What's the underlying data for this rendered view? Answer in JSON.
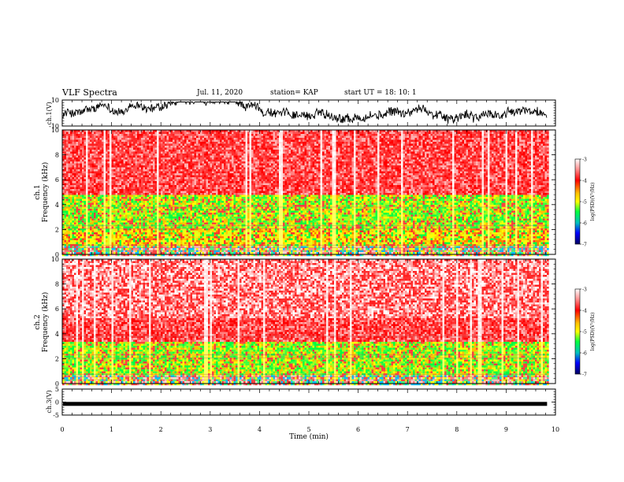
{
  "header": {
    "title": "VLF Spectra",
    "date": "Jul. 11, 2020",
    "station": "station= KAP",
    "start": "start UT =  18: 10: 1"
  },
  "colors": {
    "high": "#ff2020",
    "mid": "#ffff00",
    "low": "#00ff40",
    "bar_top": "#ffd0d0",
    "bar_bottom": "#000080"
  },
  "chart_data": [
    {
      "type": "line",
      "panel": "ch1-waveform",
      "ylabel": "ch.1(V)",
      "ylim": [
        -10,
        10
      ],
      "yticks": [
        "10",
        "-10"
      ],
      "xlim": [
        0,
        10
      ]
    },
    {
      "type": "heatmap",
      "panel": "ch1-spectrogram",
      "ylabel_top": "ch.1",
      "ylabel": "Frequency (kHz)",
      "ylim": [
        0,
        10
      ],
      "yticks": [
        "0",
        "2",
        "4",
        "6",
        "8",
        "10"
      ],
      "xlim": [
        0,
        10
      ],
      "bands": [
        {
          "from": 0,
          "to": 0.7,
          "level": "mixed"
        },
        {
          "from": 0.7,
          "to": 2.2,
          "level": "mid"
        },
        {
          "from": 2.2,
          "to": 4.8,
          "level": "low-mid"
        },
        {
          "from": 4.8,
          "to": 10,
          "level": "high"
        }
      ],
      "colorbar": {
        "label": "log(PSD)(V²/Hz)",
        "ticks": [
          "-3",
          "-4",
          "-5",
          "-6",
          "-7"
        ],
        "range": [
          -7,
          -3
        ]
      }
    },
    {
      "type": "heatmap",
      "panel": "ch2-spectrogram",
      "ylabel_top": "ch.2",
      "ylabel": "Frequency (kHz)",
      "ylim": [
        0,
        10
      ],
      "yticks": [
        "0",
        "2",
        "4",
        "6",
        "8",
        "10"
      ],
      "xlim": [
        0,
        10
      ],
      "bands": [
        {
          "from": 0,
          "to": 0.7,
          "level": "mixed"
        },
        {
          "from": 0.7,
          "to": 3.5,
          "level": "low-mid"
        },
        {
          "from": 3.5,
          "to": 5.3,
          "level": "high"
        },
        {
          "from": 5.3,
          "to": 10,
          "level": "high-white"
        }
      ],
      "colorbar": {
        "label": "log(PSD)(V²/Hz)",
        "ticks": [
          "-3",
          "-4",
          "-5",
          "-6",
          "-7"
        ],
        "range": [
          -7,
          -3
        ]
      }
    },
    {
      "type": "line",
      "panel": "ch3-waveform",
      "ylabel": "ch.3(V)",
      "ylim": [
        -5,
        5
      ],
      "yticks": [
        "5",
        "0",
        "-5"
      ],
      "xlim": [
        0,
        10
      ],
      "level": -0.7
    }
  ],
  "xaxis": {
    "label": "Time (min)",
    "ticks": [
      "0",
      "1",
      "2",
      "3",
      "4",
      "5",
      "6",
      "7",
      "8",
      "9",
      "10"
    ],
    "data_end": 9.83
  }
}
